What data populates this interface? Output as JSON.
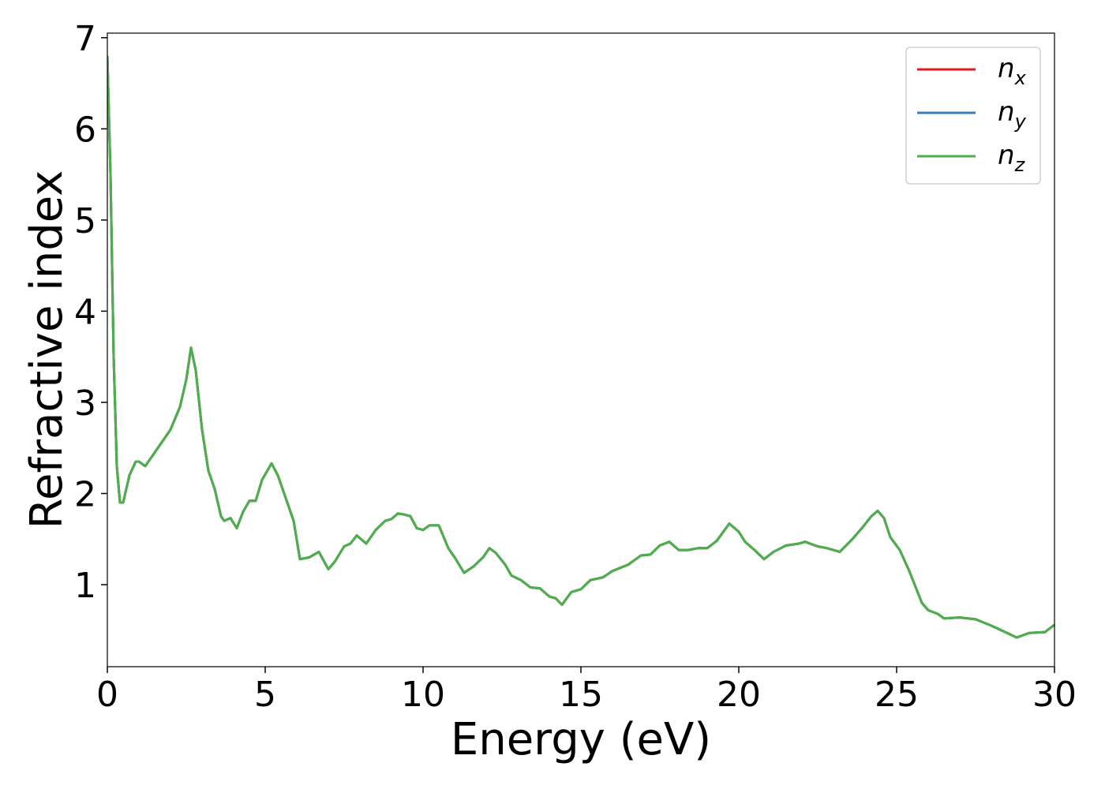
{
  "chart_data": {
    "type": "line",
    "xlabel": "Energy (eV)",
    "ylabel": "Refractive index",
    "x": [
      0,
      0.1,
      0.2,
      0.3,
      0.4,
      0.5,
      0.7,
      0.9,
      1.0,
      1.2,
      1.5,
      2.0,
      2.3,
      2.5,
      2.65,
      2.8,
      3.0,
      3.2,
      3.4,
      3.6,
      3.7,
      3.9,
      4.1,
      4.3,
      4.5,
      4.7,
      4.9,
      5.2,
      5.4,
      5.6,
      5.8,
      5.9,
      6.1,
      6.4,
      6.7,
      7.0,
      7.2,
      7.5,
      7.7,
      7.9,
      8.2,
      8.5,
      8.8,
      9.0,
      9.2,
      9.4,
      9.6,
      9.8,
      10.0,
      10.2,
      10.5,
      10.8,
      11.0,
      11.3,
      11.6,
      11.9,
      12.1,
      12.3,
      12.6,
      12.8,
      13.1,
      13.4,
      13.7,
      14.0,
      14.2,
      14.4,
      14.7,
      15.0,
      15.3,
      15.7,
      16.0,
      16.5,
      16.9,
      17.2,
      17.5,
      17.8,
      18.1,
      18.4,
      18.7,
      19.0,
      19.3,
      19.7,
      20.0,
      20.2,
      20.5,
      20.8,
      21.1,
      21.5,
      21.9,
      22.1,
      22.5,
      22.8,
      23.2,
      23.6,
      23.9,
      24.2,
      24.4,
      24.6,
      24.8,
      25.1,
      25.4,
      25.8,
      26.0,
      26.3,
      26.5,
      27.0,
      27.5,
      28.0,
      28.5,
      28.8,
      29.2,
      29.7,
      30.0
    ],
    "series": [
      {
        "name": "nx",
        "color": "#e41a1c",
        "values": [
          6.8,
          5.5,
          3.5,
          2.3,
          1.9,
          1.9,
          2.2,
          2.35,
          2.35,
          2.3,
          2.45,
          2.7,
          2.95,
          3.25,
          3.6,
          3.35,
          2.7,
          2.25,
          2.05,
          1.75,
          1.7,
          1.73,
          1.62,
          1.8,
          1.92,
          1.92,
          2.15,
          2.33,
          2.2,
          2.0,
          1.8,
          1.7,
          1.28,
          1.3,
          1.36,
          1.17,
          1.25,
          1.42,
          1.45,
          1.54,
          1.45,
          1.6,
          1.7,
          1.72,
          1.78,
          1.77,
          1.75,
          1.62,
          1.6,
          1.65,
          1.65,
          1.4,
          1.3,
          1.13,
          1.2,
          1.3,
          1.4,
          1.35,
          1.22,
          1.1,
          1.05,
          0.97,
          0.96,
          0.87,
          0.85,
          0.78,
          0.92,
          0.95,
          1.05,
          1.08,
          1.15,
          1.22,
          1.32,
          1.33,
          1.43,
          1.47,
          1.38,
          1.38,
          1.4,
          1.4,
          1.48,
          1.67,
          1.58,
          1.47,
          1.38,
          1.28,
          1.36,
          1.43,
          1.45,
          1.47,
          1.42,
          1.4,
          1.36,
          1.5,
          1.62,
          1.75,
          1.81,
          1.73,
          1.52,
          1.38,
          1.15,
          0.8,
          0.72,
          0.68,
          0.63,
          0.64,
          0.62,
          0.55,
          0.47,
          0.42,
          0.47,
          0.48,
          0.56
        ]
      },
      {
        "name": "ny",
        "color": "#377eb8",
        "values": [
          6.8,
          5.5,
          3.5,
          2.3,
          1.9,
          1.9,
          2.2,
          2.35,
          2.35,
          2.3,
          2.45,
          2.7,
          2.95,
          3.25,
          3.6,
          3.35,
          2.7,
          2.25,
          2.05,
          1.75,
          1.7,
          1.73,
          1.62,
          1.8,
          1.92,
          1.92,
          2.15,
          2.33,
          2.2,
          2.0,
          1.8,
          1.7,
          1.28,
          1.3,
          1.36,
          1.17,
          1.25,
          1.42,
          1.45,
          1.54,
          1.45,
          1.6,
          1.7,
          1.72,
          1.78,
          1.77,
          1.75,
          1.62,
          1.6,
          1.65,
          1.65,
          1.4,
          1.3,
          1.13,
          1.2,
          1.3,
          1.4,
          1.35,
          1.22,
          1.1,
          1.05,
          0.97,
          0.96,
          0.87,
          0.85,
          0.78,
          0.92,
          0.95,
          1.05,
          1.08,
          1.15,
          1.22,
          1.32,
          1.33,
          1.43,
          1.47,
          1.38,
          1.38,
          1.4,
          1.4,
          1.48,
          1.67,
          1.58,
          1.47,
          1.38,
          1.28,
          1.36,
          1.43,
          1.45,
          1.47,
          1.42,
          1.4,
          1.36,
          1.5,
          1.62,
          1.75,
          1.81,
          1.73,
          1.52,
          1.38,
          1.15,
          0.8,
          0.72,
          0.68,
          0.63,
          0.64,
          0.62,
          0.55,
          0.47,
          0.42,
          0.47,
          0.48,
          0.56
        ]
      },
      {
        "name": "nz",
        "color": "#4daf4a",
        "values": [
          6.8,
          5.5,
          3.5,
          2.3,
          1.9,
          1.9,
          2.2,
          2.35,
          2.35,
          2.3,
          2.45,
          2.7,
          2.95,
          3.25,
          3.6,
          3.35,
          2.7,
          2.25,
          2.05,
          1.75,
          1.7,
          1.73,
          1.62,
          1.8,
          1.92,
          1.92,
          2.15,
          2.33,
          2.2,
          2.0,
          1.8,
          1.7,
          1.28,
          1.3,
          1.36,
          1.17,
          1.25,
          1.42,
          1.45,
          1.54,
          1.45,
          1.6,
          1.7,
          1.72,
          1.78,
          1.77,
          1.75,
          1.62,
          1.6,
          1.65,
          1.65,
          1.4,
          1.3,
          1.13,
          1.2,
          1.3,
          1.4,
          1.35,
          1.22,
          1.1,
          1.05,
          0.97,
          0.96,
          0.87,
          0.85,
          0.78,
          0.92,
          0.95,
          1.05,
          1.08,
          1.15,
          1.22,
          1.32,
          1.33,
          1.43,
          1.47,
          1.38,
          1.38,
          1.4,
          1.4,
          1.48,
          1.67,
          1.58,
          1.47,
          1.38,
          1.28,
          1.36,
          1.43,
          1.45,
          1.47,
          1.42,
          1.4,
          1.36,
          1.5,
          1.62,
          1.75,
          1.81,
          1.73,
          1.52,
          1.38,
          1.15,
          0.8,
          0.72,
          0.68,
          0.63,
          0.64,
          0.62,
          0.55,
          0.47,
          0.42,
          0.47,
          0.48,
          0.56
        ]
      }
    ],
    "xlim": [
      0,
      30
    ],
    "xticks": [
      0,
      5,
      10,
      15,
      20,
      25,
      30
    ],
    "ylim": [
      0.1,
      7.05
    ],
    "yticks": [
      1,
      2,
      3,
      4,
      5,
      6,
      7
    ],
    "grid": false,
    "legend": "upper right"
  }
}
